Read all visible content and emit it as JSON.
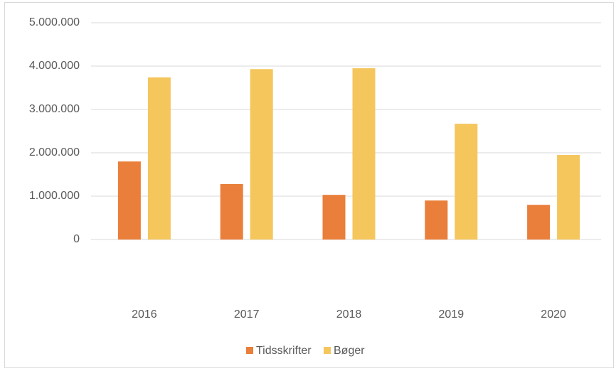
{
  "chart_data": {
    "type": "bar",
    "categories": [
      "2016",
      "2017",
      "2018",
      "2019",
      "2020"
    ],
    "series": [
      {
        "name": "Tidsskrifter",
        "color": "#e97f3a",
        "values": [
          1800000,
          1280000,
          1030000,
          900000,
          800000
        ]
      },
      {
        "name": "Bøger",
        "color": "#f4c65c",
        "values": [
          3740000,
          3930000,
          3950000,
          2670000,
          1950000
        ]
      }
    ],
    "ylim": [
      0,
      5000000
    ],
    "yticks": [
      0,
      {
        "value": 1000000,
        "label": "1.000.000"
      },
      {
        "value": 2000000,
        "label": "2.000.000"
      },
      {
        "value": 3000000,
        "label": "3.000.000"
      },
      {
        "value": 4000000,
        "label": "4.000.000"
      },
      {
        "value": 5000000,
        "label": "5.000.000"
      }
    ],
    "grid": true,
    "legend": "bottom"
  }
}
